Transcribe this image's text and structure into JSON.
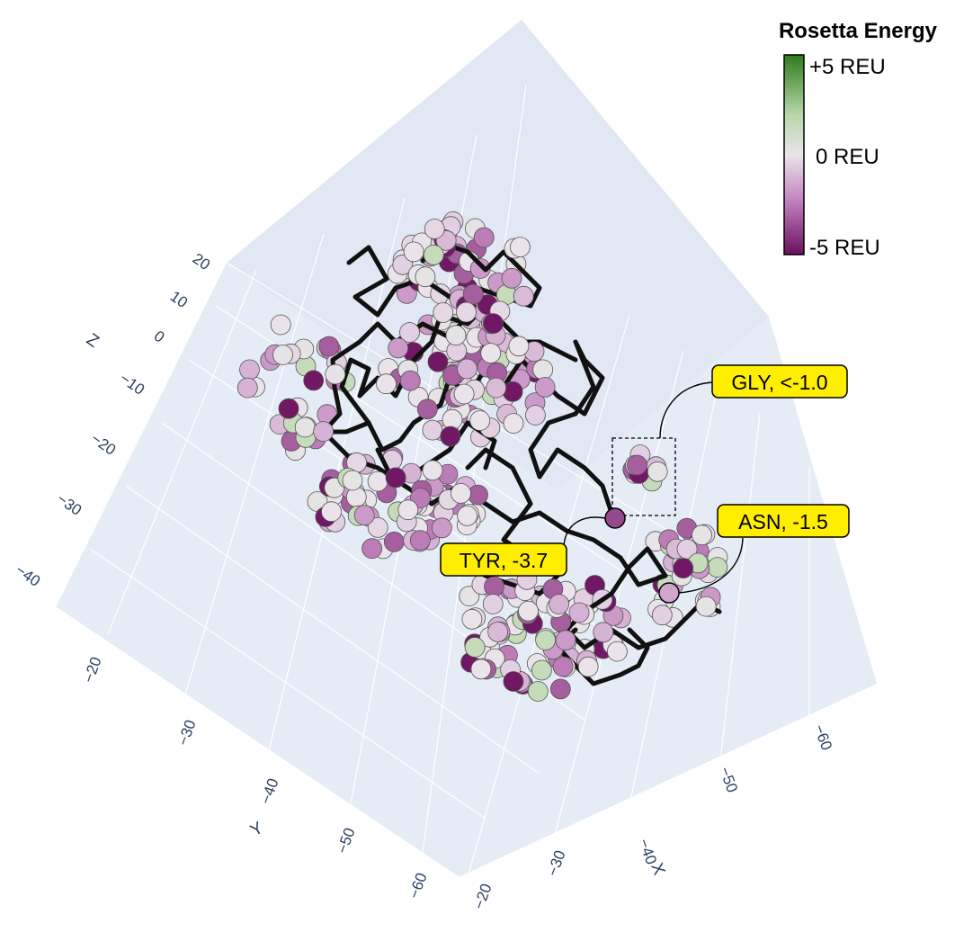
{
  "chart_data": {
    "type": "scatter",
    "colorbar": {
      "title": "Rosetta Energy",
      "tick_labels": [
        "+5 REU",
        "0 REU",
        "-5 REU"
      ],
      "range": [
        -5,
        5
      ],
      "colors": {
        "max": "#2e7a1e",
        "zero": "#eae4ea",
        "min": "#6a0f5e"
      }
    },
    "axes": {
      "x": {
        "title": "X",
        "ticks": [
          "−20",
          "−30",
          "−40",
          "−50",
          "−60"
        ]
      },
      "y": {
        "title": "Y",
        "ticks": [
          "−20",
          "−30",
          "−40",
          "−50",
          "−60"
        ]
      },
      "z": {
        "title": "Z",
        "ticks": [
          "20",
          "10",
          "0",
          "−10",
          "−20",
          "−30",
          "−40"
        ]
      }
    },
    "annotations": [
      {
        "label": "GLY, <-1.0"
      },
      {
        "label": "TYR, -3.7",
        "energy": -3.7
      },
      {
        "label": "ASN, -1.5",
        "energy": -1.5
      }
    ],
    "backbone_color": "#111111",
    "plane_color": "#e5ecf6",
    "gridline_color": "#ffffff"
  }
}
